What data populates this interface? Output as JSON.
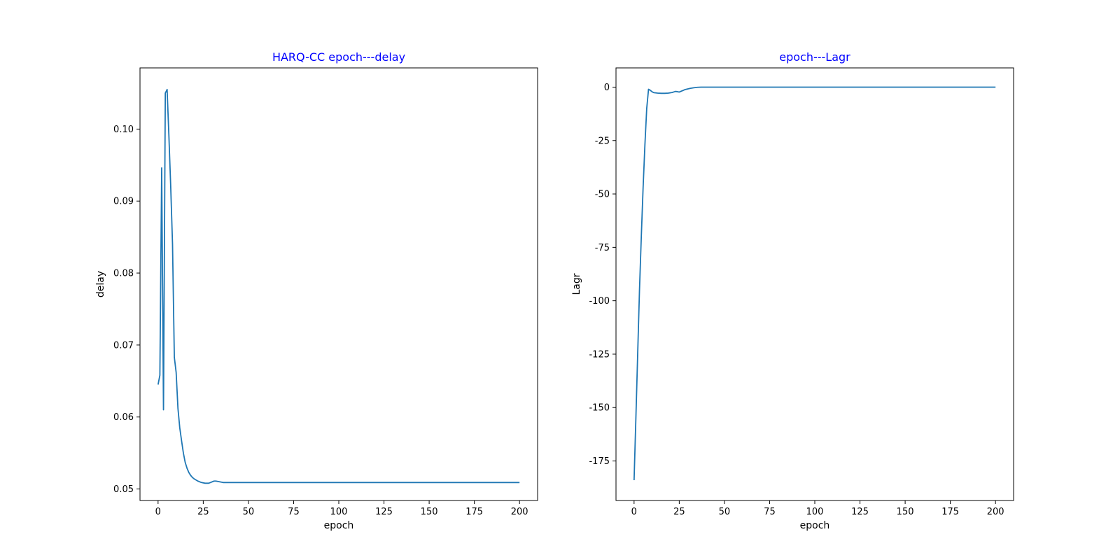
{
  "colors": {
    "title": "#0000ff",
    "series": "#1f77b4",
    "axes": "#000000",
    "background": "#ffffff"
  },
  "chart_data": [
    {
      "type": "line",
      "title": "HARQ-CC epoch---delay",
      "xlabel": "epoch",
      "ylabel": "delay",
      "xlim": [
        -10,
        210
      ],
      "ylim": [
        0.0484,
        0.1085
      ],
      "xticks": [
        0,
        25,
        50,
        75,
        100,
        125,
        150,
        175,
        200
      ],
      "xtick_labels": [
        "0",
        "25",
        "50",
        "75",
        "100",
        "125",
        "150",
        "175",
        "200"
      ],
      "yticks": [
        0.05,
        0.06,
        0.07,
        0.08,
        0.09,
        0.1
      ],
      "ytick_labels": [
        "0.05",
        "0.06",
        "0.07",
        "0.08",
        "0.09",
        "0.10"
      ],
      "grid": false,
      "series": [
        {
          "color": "#1f77b4",
          "x": [
            0,
            1,
            2,
            3,
            4,
            5,
            6,
            7,
            8,
            9,
            10,
            11,
            12,
            13,
            14,
            15,
            16,
            17,
            18,
            19,
            20,
            22,
            24,
            26,
            27,
            28,
            29,
            30,
            31,
            32,
            34,
            36,
            38,
            40,
            42,
            45,
            50,
            60,
            75,
            100,
            125,
            150,
            175,
            200
          ],
          "y": [
            0.0645,
            0.0658,
            0.0946,
            0.061,
            0.105,
            0.1055,
            0.099,
            0.092,
            0.084,
            0.0683,
            0.0662,
            0.0612,
            0.0585,
            0.0567,
            0.055,
            0.0537,
            0.0529,
            0.0523,
            0.0519,
            0.0516,
            0.0514,
            0.0511,
            0.0509,
            0.0508,
            0.0508,
            0.0508,
            0.0509,
            0.051,
            0.0511,
            0.0511,
            0.051,
            0.0509,
            0.0509,
            0.0509,
            0.0509,
            0.0509,
            0.0509,
            0.0509,
            0.0509,
            0.0509,
            0.0509,
            0.0509,
            0.0509,
            0.0509
          ]
        }
      ]
    },
    {
      "type": "line",
      "title": "epoch---Lagr",
      "xlabel": "epoch",
      "ylabel": "Lagr",
      "xlim": [
        -10,
        210
      ],
      "ylim": [
        -193.5,
        9.0
      ],
      "xticks": [
        0,
        25,
        50,
        75,
        100,
        125,
        150,
        175,
        200
      ],
      "xtick_labels": [
        "0",
        "25",
        "50",
        "75",
        "100",
        "125",
        "150",
        "175",
        "200"
      ],
      "yticks": [
        0,
        -25,
        -50,
        -75,
        -100,
        -125,
        -150,
        -175
      ],
      "ytick_labels": [
        "0",
        "-25",
        "-50",
        "-75",
        "-100",
        "-125",
        "-150",
        "-175"
      ],
      "grid": false,
      "series": [
        {
          "color": "#1f77b4",
          "x": [
            0,
            1,
            2,
            3,
            4,
            5,
            6,
            7,
            8,
            9,
            10,
            11,
            13,
            15,
            17,
            19,
            21,
            23,
            25,
            27,
            28,
            29,
            30,
            31,
            33,
            35,
            37,
            39,
            41,
            42,
            45,
            50,
            75,
            100,
            125,
            150,
            175,
            200
          ],
          "y": [
            -184,
            -155,
            -125,
            -95,
            -70,
            -47,
            -27,
            -10,
            -1,
            -1.5,
            -2.2,
            -2.6,
            -2.8,
            -2.9,
            -2.9,
            -2.8,
            -2.5,
            -2.0,
            -2.3,
            -1.6,
            -1.2,
            -1.0,
            -0.8,
            -0.6,
            -0.3,
            -0.1,
            0,
            0,
            0,
            0,
            0,
            0,
            0,
            0,
            0,
            0,
            0,
            0
          ]
        }
      ]
    }
  ]
}
